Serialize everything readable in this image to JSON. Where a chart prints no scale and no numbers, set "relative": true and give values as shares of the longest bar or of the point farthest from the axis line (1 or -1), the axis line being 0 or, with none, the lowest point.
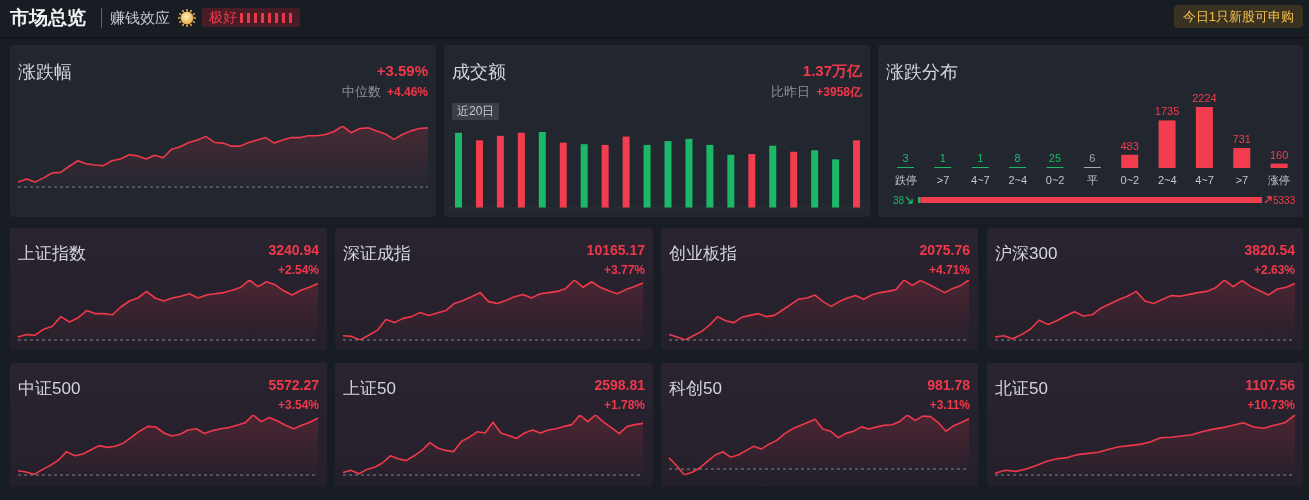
{
  "chart_data": [
    {
      "type": "other",
      "title": "市场总览",
      "annotations": [
        "赚钱效应",
        "极好",
        "今日1只新股可申购"
      ]
    },
    {
      "type": "area",
      "title": "涨跌幅",
      "annotations": [
        "+3.59%",
        "中位数",
        "+4.46%"
      ],
      "relative": true,
      "color": "#f0384b",
      "ref_lines": [
        {
          "axis": "y",
          "value": 0,
          "color": "#80858e",
          "line_style": "dashed"
        }
      ],
      "categories": [
        null,
        null,
        null,
        null,
        null,
        null,
        null,
        null,
        null,
        null,
        null,
        null,
        null,
        null,
        null,
        null,
        null,
        null,
        null,
        null,
        null,
        null,
        null,
        null,
        null,
        null,
        null,
        null,
        null,
        null,
        null,
        null,
        null,
        null,
        null,
        null,
        null,
        null,
        null,
        null,
        null,
        null,
        null,
        null,
        null,
        null,
        null,
        null,
        null
      ],
      "values": [
        0.08,
        0.13,
        0.08,
        0.15,
        0.23,
        0.24,
        0.34,
        0.43,
        0.38,
        0.36,
        0.35,
        0.43,
        0.46,
        0.53,
        0.51,
        0.46,
        0.52,
        0.48,
        0.62,
        0.66,
        0.73,
        0.77,
        0.83,
        0.73,
        0.72,
        0.67,
        0.67,
        0.73,
        0.77,
        0.81,
        0.72,
        0.77,
        0.81,
        0.81,
        0.84,
        0.84,
        0.86,
        0.91,
        1.0,
        0.89,
        0.96,
        0.97,
        0.92,
        0.87,
        0.78,
        0.86,
        0.92,
        0.96,
        0.97
      ]
    },
    {
      "type": "bar",
      "title": "成交额",
      "subtitle": "近20日",
      "annotations": [
        "1.37万亿",
        "比昨日",
        "+3958亿"
      ],
      "relative": true,
      "categories": [
        null,
        null,
        null,
        null,
        null,
        null,
        null,
        null,
        null,
        null,
        null,
        null,
        null,
        null,
        null,
        null,
        null,
        null,
        null,
        null
      ],
      "values": [
        0.99,
        0.89,
        0.95,
        0.99,
        1.0,
        0.86,
        0.84,
        0.83,
        0.94,
        0.83,
        0.88,
        0.91,
        0.83,
        0.7,
        0.71,
        0.82,
        0.74,
        0.76,
        0.64,
        0.89
      ],
      "colors": [
        "#1bb868",
        "#f23d4f",
        "#f23d4f",
        "#f23d4f",
        "#1bb868",
        "#f23d4f",
        "#1bb868",
        "#f23d4f",
        "#f23d4f",
        "#1bb868",
        "#1bb868",
        "#1bb868",
        "#1bb868",
        "#1bb868",
        "#f23d4f",
        "#1bb868",
        "#f23d4f",
        "#1bb868",
        "#1bb868",
        "#f23d4f"
      ]
    },
    {
      "type": "bar",
      "title": "涨跌分布",
      "categories": [
        "跌停",
        ">7",
        "4~7",
        "2~4",
        "0~2",
        "平",
        "0~2",
        "2~4",
        "4~7",
        ">7",
        "涨停"
      ],
      "values": [
        3,
        1,
        1,
        8,
        25,
        6,
        483,
        1735,
        2224,
        731,
        160
      ],
      "colors": [
        "#1bb868",
        "#1bb868",
        "#1bb868",
        "#1bb868",
        "#1bb868",
        "#a3a8b0",
        "#f23d4f",
        "#f23d4f",
        "#f23d4f",
        "#f23d4f",
        "#f23d4f"
      ],
      "data_labels": true,
      "tick_labels": "x"
    },
    {
      "type": "other",
      "values": [
        38,
        5333
      ],
      "colors": [
        "#1bb868",
        "#f23d4f"
      ],
      "data_labels": true
    },
    {
      "type": "area",
      "title": "上证指数",
      "annotations": [
        "3240.94",
        "+2.54%"
      ],
      "relative": true,
      "color": "#f0384b",
      "ref_lines": [
        {
          "axis": "y",
          "value": 0,
          "color": "#80858e",
          "line_style": "dashed"
        }
      ],
      "categories": [
        null,
        null,
        null,
        null,
        null,
        null,
        null,
        null,
        null,
        null,
        null,
        null,
        null,
        null,
        null,
        null,
        null,
        null,
        null,
        null,
        null,
        null,
        null,
        null,
        null,
        null,
        null,
        null,
        null,
        null,
        null,
        null,
        null,
        null,
        null,
        null
      ],
      "values": [
        0.05,
        0.09,
        0.08,
        0.18,
        0.23,
        0.39,
        0.3,
        0.37,
        0.49,
        0.44,
        0.44,
        0.42,
        0.55,
        0.65,
        0.7,
        0.81,
        0.7,
        0.65,
        0.7,
        0.73,
        0.77,
        0.7,
        0.75,
        0.77,
        0.79,
        0.83,
        0.88,
        1.0,
        0.89,
        0.97,
        0.92,
        0.82,
        0.75,
        0.83,
        0.88,
        0.94
      ]
    },
    {
      "type": "area",
      "title": "深证成指",
      "annotations": [
        "10165.17",
        "+3.77%"
      ],
      "relative": true,
      "color": "#f0384b",
      "ref_lines": [
        {
          "axis": "y",
          "value": 0,
          "color": "#80858e",
          "line_style": "dashed"
        }
      ],
      "categories": [
        null,
        null,
        null,
        null,
        null,
        null,
        null,
        null,
        null,
        null,
        null,
        null,
        null,
        null,
        null,
        null,
        null,
        null,
        null,
        null,
        null,
        null,
        null,
        null,
        null,
        null,
        null,
        null,
        null,
        null,
        null,
        null,
        null,
        null,
        null,
        null
      ],
      "values": [
        0.07,
        0.06,
        0.0,
        0.08,
        0.16,
        0.34,
        0.29,
        0.36,
        0.39,
        0.46,
        0.41,
        0.45,
        0.49,
        0.61,
        0.66,
        0.72,
        0.79,
        0.64,
        0.61,
        0.66,
        0.72,
        0.76,
        0.7,
        0.77,
        0.79,
        0.81,
        0.86,
        1.0,
        0.88,
        0.97,
        0.88,
        0.82,
        0.77,
        0.84,
        0.89,
        0.95
      ]
    },
    {
      "type": "area",
      "title": "创业板指",
      "annotations": [
        "2075.76",
        "+4.71%"
      ],
      "relative": true,
      "color": "#f0384b",
      "ref_lines": [
        {
          "axis": "y",
          "value": 0,
          "color": "#80858e",
          "line_style": "dashed"
        }
      ],
      "categories": [
        null,
        null,
        null,
        null,
        null,
        null,
        null,
        null,
        null,
        null,
        null,
        null,
        null,
        null,
        null,
        null,
        null,
        null,
        null,
        null,
        null,
        null,
        null,
        null,
        null,
        null,
        null,
        null,
        null,
        null,
        null,
        null,
        null,
        null,
        null,
        null,
        null,
        null
      ],
      "values": [
        0.09,
        0.05,
        0.0,
        0.07,
        0.14,
        0.25,
        0.39,
        0.32,
        0.29,
        0.38,
        0.41,
        0.44,
        0.39,
        0.41,
        0.5,
        0.59,
        0.68,
        0.7,
        0.75,
        0.64,
        0.56,
        0.64,
        0.7,
        0.74,
        0.68,
        0.75,
        0.79,
        0.81,
        0.84,
        1.0,
        0.91,
        0.99,
        0.93,
        0.86,
        0.79,
        0.86,
        0.91,
        1.0
      ]
    },
    {
      "type": "area",
      "title": "沪深300",
      "annotations": [
        "3820.54",
        "+2.63%"
      ],
      "relative": true,
      "color": "#f0384b",
      "ref_lines": [
        {
          "axis": "y",
          "value": 0,
          "color": "#80858e",
          "line_style": "dashed"
        }
      ],
      "categories": [
        null,
        null,
        null,
        null,
        null,
        null,
        null,
        null,
        null,
        null,
        null,
        null,
        null,
        null,
        null,
        null,
        null,
        null,
        null,
        null,
        null,
        null,
        null,
        null,
        null,
        null,
        null,
        null,
        null,
        null,
        null,
        null,
        null,
        null,
        null
      ],
      "values": [
        0.05,
        0.07,
        0.02,
        0.09,
        0.18,
        0.33,
        0.26,
        0.32,
        0.4,
        0.47,
        0.4,
        0.42,
        0.53,
        0.6,
        0.67,
        0.73,
        0.81,
        0.65,
        0.61,
        0.68,
        0.74,
        0.73,
        0.76,
        0.79,
        0.81,
        0.87,
        1.0,
        0.89,
        0.99,
        0.89,
        0.82,
        0.75,
        0.85,
        0.88,
        0.94
      ]
    },
    {
      "type": "area",
      "title": "中证500",
      "annotations": [
        "5572.27",
        "+3.54%"
      ],
      "relative": true,
      "color": "#f0384b",
      "ref_lines": [
        {
          "axis": "y",
          "value": 0,
          "color": "#80858e",
          "line_style": "dashed"
        }
      ],
      "categories": [
        null,
        null,
        null,
        null,
        null,
        null,
        null,
        null,
        null,
        null,
        null,
        null,
        null,
        null,
        null,
        null,
        null,
        null,
        null,
        null,
        null,
        null,
        null,
        null,
        null,
        null,
        null,
        null,
        null,
        null,
        null,
        null,
        null,
        null,
        null,
        null,
        null,
        null
      ],
      "values": [
        0.07,
        0.05,
        0.01,
        0.09,
        0.16,
        0.25,
        0.39,
        0.32,
        0.35,
        0.42,
        0.49,
        0.46,
        0.48,
        0.53,
        0.63,
        0.73,
        0.81,
        0.8,
        0.7,
        0.65,
        0.68,
        0.75,
        0.77,
        0.69,
        0.74,
        0.77,
        0.79,
        0.83,
        0.87,
        1.0,
        0.89,
        0.96,
        0.9,
        0.83,
        0.77,
        0.83,
        0.88,
        0.95
      ]
    },
    {
      "type": "area",
      "title": "上证50",
      "annotations": [
        "2598.81",
        "+1.78%"
      ],
      "relative": true,
      "color": "#f0384b",
      "ref_lines": [
        {
          "axis": "y",
          "value": 0,
          "color": "#80858e",
          "line_style": "dashed"
        }
      ],
      "categories": [
        null,
        null,
        null,
        null,
        null,
        null,
        null,
        null,
        null,
        null,
        null,
        null,
        null,
        null,
        null,
        null,
        null,
        null,
        null,
        null,
        null,
        null,
        null,
        null,
        null,
        null,
        null,
        null,
        null,
        null,
        null,
        null,
        null,
        null,
        null,
        null,
        null,
        null,
        null
      ],
      "values": [
        0.04,
        0.08,
        0.02,
        0.09,
        0.13,
        0.2,
        0.32,
        0.27,
        0.24,
        0.32,
        0.41,
        0.54,
        0.45,
        0.41,
        0.39,
        0.56,
        0.63,
        0.72,
        0.7,
        0.88,
        0.7,
        0.66,
        0.61,
        0.7,
        0.75,
        0.7,
        0.75,
        0.77,
        0.81,
        0.84,
        1.0,
        0.89,
        1.0,
        0.88,
        0.79,
        0.69,
        0.81,
        0.84,
        0.86
      ]
    },
    {
      "type": "area",
      "title": "科创50",
      "annotations": [
        "981.78",
        "+3.11%"
      ],
      "relative": true,
      "color": "#f0384b",
      "ref_lines": [
        {
          "axis": "y",
          "value": 0,
          "color": "#80858e",
          "line_style": "dashed"
        }
      ],
      "categories": [
        null,
        null,
        null,
        null,
        null,
        null,
        null,
        null,
        null,
        null,
        null,
        null,
        null,
        null,
        null,
        null,
        null,
        null,
        null,
        null,
        null,
        null,
        null,
        null,
        null,
        null,
        null,
        null,
        null,
        null,
        null,
        null,
        null,
        null,
        null,
        null,
        null,
        null,
        null,
        null
      ],
      "values": [
        0.21,
        0.06,
        -0.11,
        -0.06,
        0.02,
        0.14,
        0.26,
        0.32,
        0.22,
        0.26,
        0.34,
        0.42,
        0.37,
        0.46,
        0.53,
        0.65,
        0.74,
        0.8,
        0.86,
        0.92,
        0.74,
        0.7,
        0.58,
        0.66,
        0.7,
        0.78,
        0.74,
        0.78,
        0.81,
        0.82,
        0.88,
        1.0,
        0.9,
        0.98,
        0.97,
        0.86,
        0.7,
        0.8,
        0.86,
        0.93
      ]
    },
    {
      "type": "area",
      "title": "北证50",
      "annotations": [
        "1107.56",
        "+10.73%"
      ],
      "relative": true,
      "color": "#f0384b",
      "ref_lines": [
        {
          "axis": "y",
          "value": 0,
          "color": "#80858e",
          "line_style": "dashed"
        }
      ],
      "categories": [
        null,
        null,
        null,
        null,
        null,
        null,
        null,
        null,
        null,
        null,
        null,
        null,
        null,
        null,
        null,
        null,
        null,
        null,
        null,
        null,
        null,
        null,
        null,
        null,
        null,
        null,
        null,
        null,
        null,
        null
      ],
      "values": [
        0.03,
        0.08,
        0.06,
        0.1,
        0.16,
        0.23,
        0.27,
        0.29,
        0.34,
        0.36,
        0.38,
        0.43,
        0.47,
        0.49,
        0.51,
        0.55,
        0.62,
        0.63,
        0.65,
        0.67,
        0.72,
        0.76,
        0.79,
        0.83,
        0.87,
        0.8,
        0.78,
        0.83,
        0.87,
        1.0
      ]
    }
  ]
}
